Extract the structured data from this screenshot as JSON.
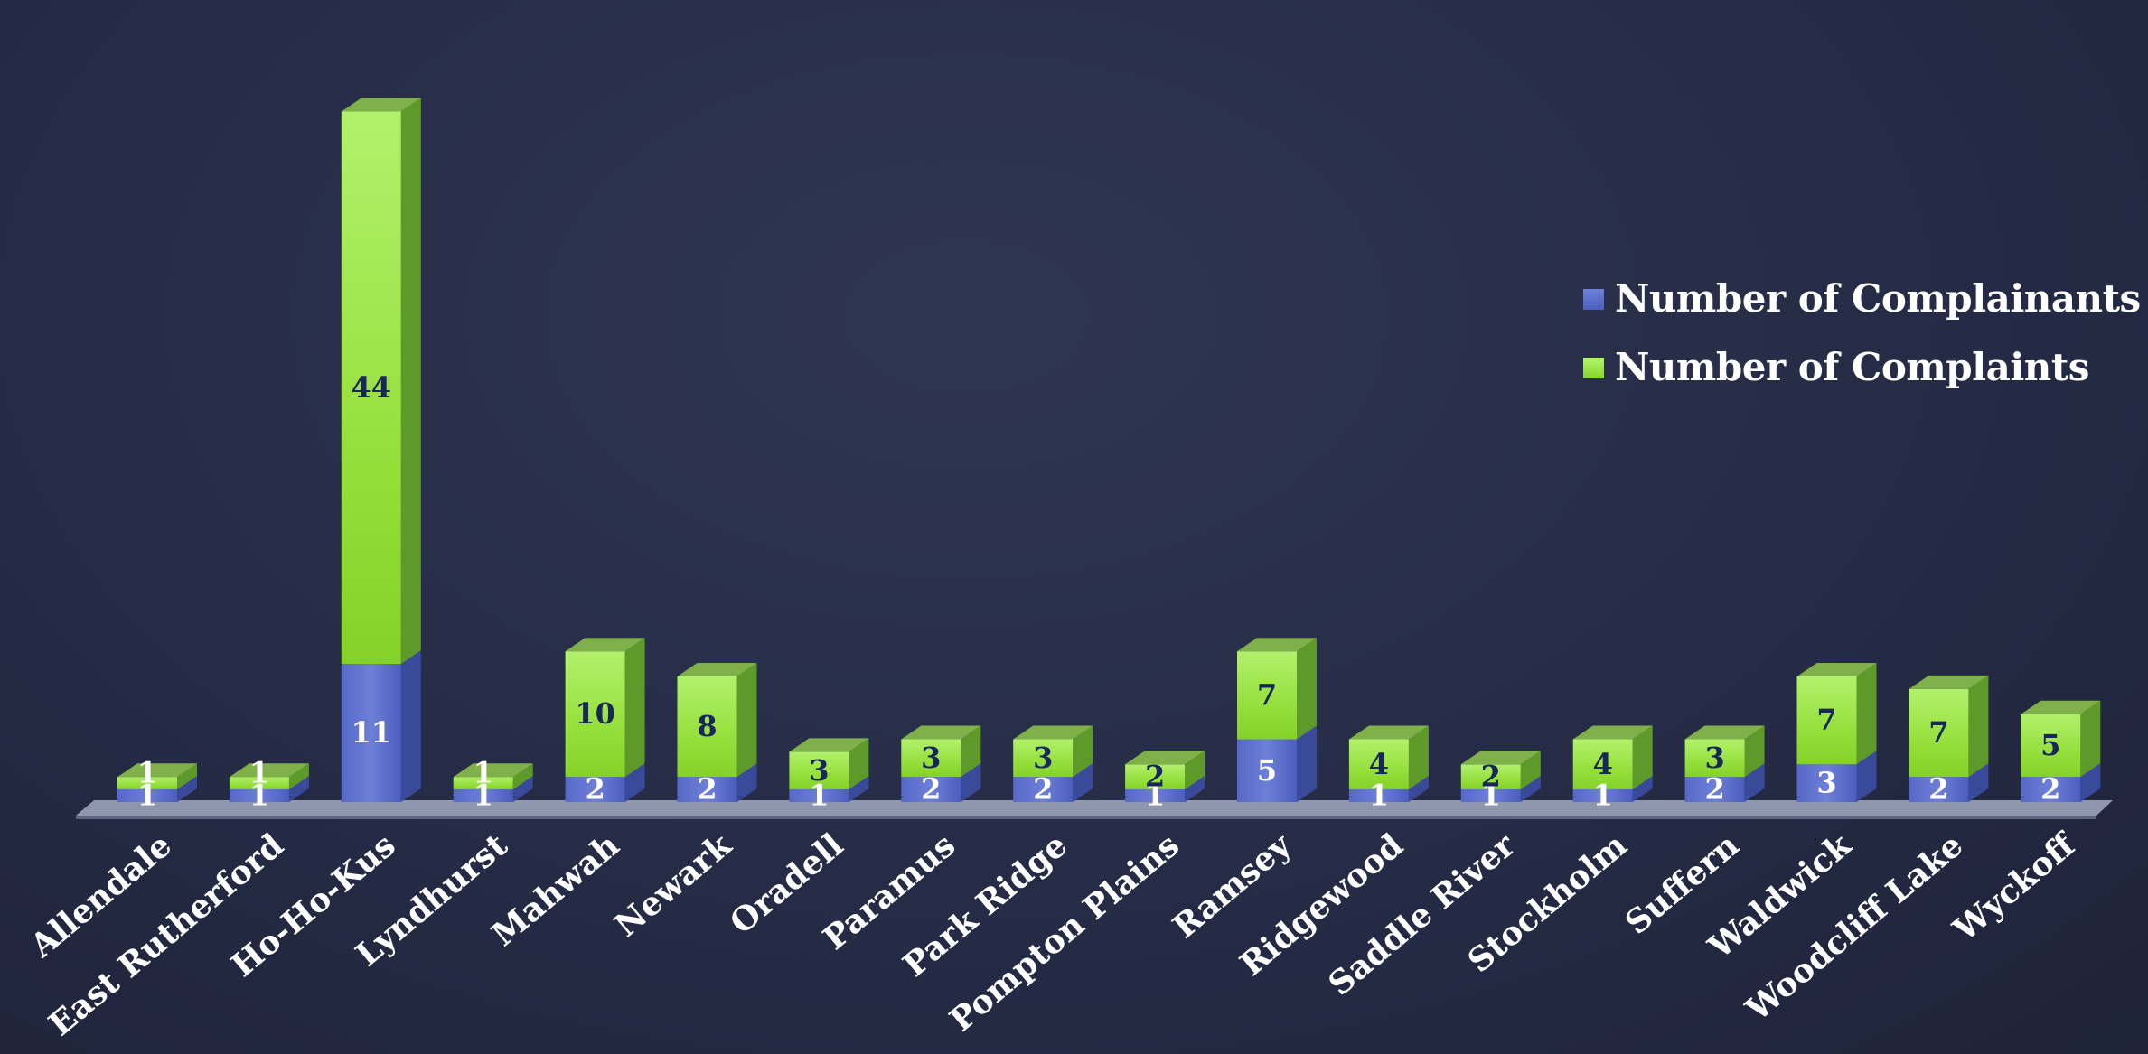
{
  "chart_data": {
    "type": "bar",
    "stacked": true,
    "style": "3d-column",
    "title": "",
    "xlabel": "",
    "ylabel": "",
    "grid": false,
    "legend_position": "right",
    "categories": [
      "Allendale",
      "East Rutherford",
      "Ho-Ho-Kus",
      "Lyndhurst",
      "Mahwah",
      "Newark",
      "Oradell",
      "Paramus",
      "Park Ridge",
      "Pompton Plains",
      "Ramsey",
      "Ridgewood",
      "Saddle River",
      "Stockholm",
      "Suffern",
      "Waldwick",
      "Woodcliff Lake",
      "Wyckoff"
    ],
    "series": [
      {
        "name": "Number of Complainants",
        "color": "#4a5fbf",
        "values": [
          1,
          1,
          11,
          1,
          2,
          2,
          1,
          2,
          2,
          1,
          5,
          1,
          1,
          1,
          2,
          3,
          2,
          2
        ]
      },
      {
        "name": "Number of Complaints",
        "color": "#8fdc35",
        "values": [
          1,
          1,
          44,
          1,
          10,
          8,
          3,
          3,
          3,
          2,
          7,
          4,
          2,
          4,
          3,
          7,
          7,
          5
        ]
      }
    ]
  },
  "colors": {
    "background": "#262c46",
    "complainants_bar": "#4a5fbf",
    "complaints_bar": "#8fdc35",
    "value_label_on_complaints": "#17275a",
    "value_label_on_complainants": "#ffffff",
    "axis_label": "#ffffff"
  }
}
